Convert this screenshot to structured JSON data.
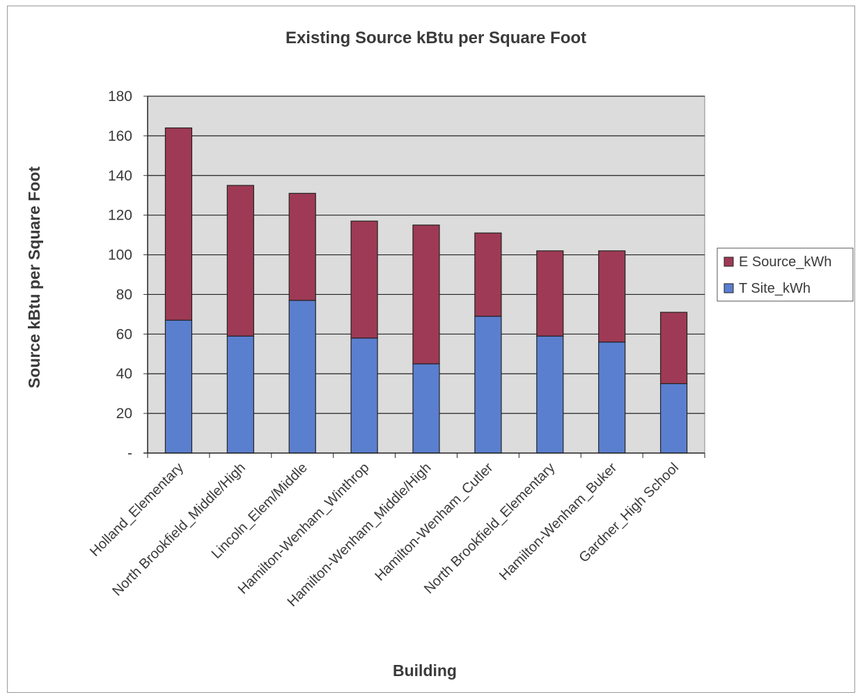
{
  "chart_data": {
    "type": "bar",
    "stacked": true,
    "title": "Existing Source kBtu per Square Foot",
    "xlabel": "Building",
    "ylabel": "Source kBtu per Square Foot",
    "ylim": [
      0,
      180
    ],
    "yticks": [
      0,
      20,
      40,
      60,
      80,
      100,
      120,
      140,
      160,
      180
    ],
    "ytick_labels": [
      "-",
      "20",
      "40",
      "60",
      "80",
      "100",
      "120",
      "140",
      "160",
      "180"
    ],
    "grid": true,
    "legend_position": "right",
    "categories": [
      "Holland_Elementary",
      "North Brookfield_Middle/High",
      "Lincoln_Elem/Middle",
      "Hamilton-Wenham_Winthrop",
      "Hamilton-Wenham_Middle/High",
      "Hamilton-Wenham_Cutler",
      "North Brookfield_Elementary",
      "Hamilton-Wenham_Buker",
      "Gardner_High School"
    ],
    "series": [
      {
        "name": "T Site_kWh",
        "color": "#5b7fcf",
        "values": [
          67,
          59,
          77,
          58,
          45,
          69,
          59,
          56,
          35
        ]
      },
      {
        "name": "E Source_kWh",
        "color": "#9e3a55",
        "values": [
          97,
          76,
          54,
          59,
          70,
          42,
          43,
          46,
          36
        ]
      }
    ],
    "legend_order": [
      "E Source_kWh",
      "T Site_kWh"
    ],
    "plot_background": "#dcdcdc"
  }
}
